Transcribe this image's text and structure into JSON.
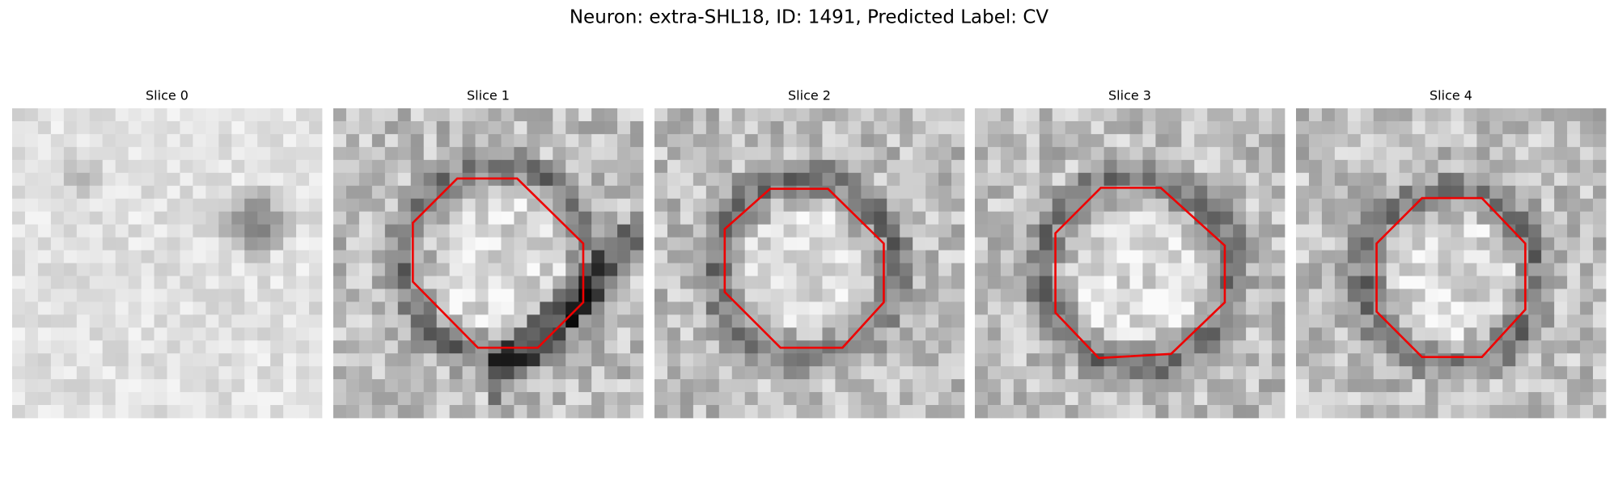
{
  "title": "Neuron: extra-SHL18, ID: 1491, Predicted Label: CV",
  "panels": [
    {
      "title": "Slice 0"
    },
    {
      "title": "Slice 1"
    },
    {
      "title": "Slice 2"
    },
    {
      "title": "Slice 3"
    },
    {
      "title": "Slice 4"
    }
  ]
}
